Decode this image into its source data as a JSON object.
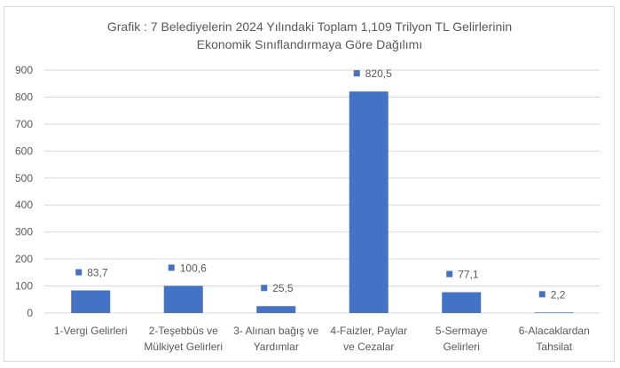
{
  "chart_data": {
    "type": "bar",
    "title": [
      "Grafik : 7 Belediyelerin 2024 Yılındaki Toplam 1,109 Trilyon  TL  Gelirlerinin",
      "Ekonomik Sınıflandırmaya Göre Dağılımı"
    ],
    "categories": [
      [
        "1-Vergi Gelirleri"
      ],
      [
        "2-Teşebbüs ve",
        "Mülkiyet Gelirleri"
      ],
      [
        "3- Alınan bağış ve",
        "Yardımlar"
      ],
      [
        "4-Faizler, Paylar",
        "ve Cezalar"
      ],
      [
        "5-Sermaye",
        "Gelirleri"
      ],
      [
        "6-Alacaklardan",
        "Tahsilat"
      ]
    ],
    "values": [
      83.7,
      100.6,
      25.5,
      820.5,
      77.1,
      2.2
    ],
    "data_labels": [
      "83,7",
      "100,6",
      "25,5",
      "820,5",
      "77,1",
      "2,2"
    ],
    "xlabel": "",
    "ylabel": "",
    "ylim": [
      0,
      900
    ],
    "yticks": [
      0,
      100,
      200,
      300,
      400,
      500,
      600,
      700,
      800,
      900
    ],
    "grid": true,
    "legend": "none",
    "bar_color": "#4472c4"
  }
}
